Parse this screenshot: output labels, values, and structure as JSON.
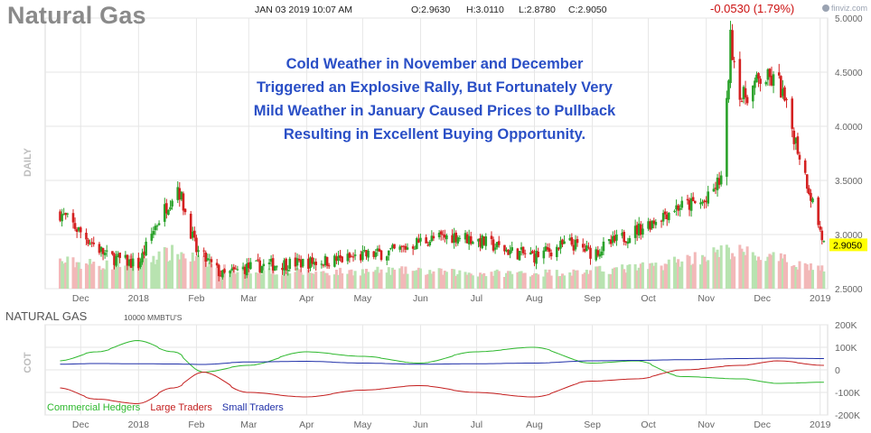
{
  "header": {
    "title": "Natural Gas",
    "datestamp": "JAN 03 2019 10:07 AM",
    "open": "O:2.9630",
    "high": "H:3.0110",
    "low": "L:2.8780",
    "close": "C:2.9050",
    "change": "-0.0530 (1.79%)",
    "brand": "finviz.com"
  },
  "annotation": {
    "lines": [
      "Cold Weather in November and December",
      "Triggered an Explosive Rally, But Fortunately Very",
      "Mild Weather in January Caused Prices to Pullback",
      "Resulting in Excellent Buying Opportunity."
    ]
  },
  "cot": {
    "title": "NATURAL GAS",
    "units": "10000 MMBTU'S",
    "legend": [
      "Commercial Hedgers",
      "Large Traders",
      "Small Traders"
    ]
  },
  "colors": {
    "up": "#2aa22a",
    "down": "#d42020",
    "volume_up": "#b8e3b0",
    "volume_down": "#f2b8b8",
    "commercial": "#2db82d",
    "large": "#c41e1e",
    "small": "#1f2fa8",
    "annotation": "#2a4fc6",
    "last_price_bg": "#ffff00",
    "grid": "#e6e6e6",
    "axis_label": "#666666"
  },
  "chart_data": [
    {
      "type": "candlestick",
      "name": "price",
      "y_axis_label": "DAILY",
      "ylim": [
        2.5,
        5.0
      ],
      "y_ticks": [
        "5.0000",
        "4.5000",
        "4.0000",
        "3.5000",
        "3.0000",
        "2.5000"
      ],
      "x_tick_labels": [
        "Dec",
        "2018",
        "Feb",
        "Mar",
        "Apr",
        "May",
        "Jun",
        "Jul",
        "Aug",
        "Sep",
        "Oct",
        "Nov",
        "Dec",
        "2019"
      ],
      "last_price": "2.9050",
      "x": [
        "2017-11-20",
        "2017-12-01",
        "2017-12-15",
        "2018-01-01",
        "2018-01-10",
        "2018-01-22",
        "2018-02-01",
        "2018-02-15",
        "2018-03-01",
        "2018-03-20",
        "2018-04-01",
        "2018-04-20",
        "2018-05-01",
        "2018-05-20",
        "2018-06-01",
        "2018-06-20",
        "2018-07-01",
        "2018-07-20",
        "2018-08-01",
        "2018-08-20",
        "2018-09-01",
        "2018-09-15",
        "2018-10-01",
        "2018-10-15",
        "2018-11-01",
        "2018-11-10",
        "2018-11-14",
        "2018-11-20",
        "2018-12-01",
        "2018-12-10",
        "2018-12-20",
        "2018-12-28",
        "2019-01-03"
      ],
      "close": [
        3.2,
        3.02,
        2.8,
        2.72,
        3.08,
        3.45,
        2.85,
        2.62,
        2.7,
        2.73,
        2.74,
        2.77,
        2.8,
        2.85,
        2.94,
        2.99,
        2.95,
        2.84,
        2.8,
        2.92,
        2.83,
        2.95,
        3.1,
        3.25,
        3.3,
        3.55,
        4.8,
        4.25,
        4.45,
        4.4,
        3.8,
        3.3,
        2.905
      ]
    },
    {
      "type": "bar",
      "name": "volume",
      "x": [
        "2017-11-20",
        "2017-12-15",
        "2018-01-22",
        "2018-02-15",
        "2018-04-01",
        "2018-05-20",
        "2018-07-01",
        "2018-08-20",
        "2018-10-01",
        "2018-11-14",
        "2018-12-10",
        "2019-01-03"
      ],
      "values": [
        30,
        26,
        40,
        22,
        18,
        20,
        17,
        18,
        24,
        42,
        32,
        22
      ]
    },
    {
      "type": "line",
      "name": "COT",
      "ylim": [
        -200000,
        200000
      ],
      "y_ticks": [
        "200K",
        "100K",
        "0",
        "-100K",
        "-200K"
      ],
      "x_tick_labels": [
        "Dec",
        "2018",
        "Feb",
        "Mar",
        "Apr",
        "May",
        "Jun",
        "Jul",
        "Aug",
        "Sep",
        "Oct",
        "Nov",
        "Dec",
        "2019"
      ],
      "x": [
        "2017-11-20",
        "2017-12-10",
        "2018-01-01",
        "2018-01-20",
        "2018-02-05",
        "2018-03-01",
        "2018-04-01",
        "2018-05-01",
        "2018-06-01",
        "2018-07-01",
        "2018-08-01",
        "2018-09-01",
        "2018-09-25",
        "2018-10-20",
        "2018-11-20",
        "2018-12-10",
        "2019-01-03"
      ],
      "series": [
        {
          "name": "Commercial Hedgers",
          "values": [
            40000,
            80000,
            130000,
            80000,
            -10000,
            20000,
            80000,
            60000,
            30000,
            80000,
            100000,
            30000,
            40000,
            -30000,
            -40000,
            -60000,
            -55000
          ]
        },
        {
          "name": "Large Traders",
          "values": [
            -80000,
            -130000,
            -150000,
            -80000,
            -10000,
            -100000,
            -120000,
            -90000,
            -70000,
            -100000,
            -120000,
            -50000,
            -40000,
            0,
            20000,
            40000,
            20000
          ]
        },
        {
          "name": "Small Traders",
          "values": [
            25000,
            28000,
            27000,
            26000,
            24000,
            35000,
            38000,
            30000,
            25000,
            27000,
            30000,
            40000,
            42000,
            45000,
            50000,
            52000,
            50000
          ]
        }
      ]
    }
  ]
}
